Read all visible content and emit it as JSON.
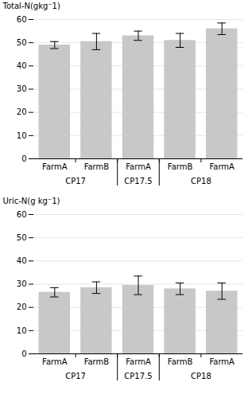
{
  "chart_data": [
    {
      "type": "bar",
      "ylabel": "Total-N(gkg⁻1)",
      "categories": [
        "FarmA",
        "FarmB",
        "FarmA",
        "FarmB",
        "FarmA"
      ],
      "groups": [
        "CP17",
        "CP17",
        "CP17.5",
        "CP18",
        "CP18"
      ],
      "values": [
        49.0,
        50.5,
        53.0,
        51.0,
        56.0
      ],
      "errors": [
        1.5,
        3.5,
        2.0,
        3.0,
        2.5
      ],
      "color": "#c8c8c8",
      "ylim": [
        0,
        60
      ],
      "yticks": [
        0,
        10,
        20,
        30,
        40,
        50,
        60
      ],
      "grid": true
    },
    {
      "type": "bar",
      "ylabel": "Uric-N(g kg⁻1)",
      "categories": [
        "FarmA",
        "FarmB",
        "FarmA",
        "FarmB",
        "FarmA"
      ],
      "groups": [
        "CP17",
        "CP17",
        "CP17.5",
        "CP18",
        "CP18"
      ],
      "values": [
        26.5,
        28.5,
        29.5,
        28.0,
        27.0
      ],
      "errors": [
        2.0,
        2.5,
        4.0,
        2.5,
        3.5
      ],
      "color": "#c8c8c8",
      "ylim": [
        0,
        60
      ],
      "yticks": [
        0,
        10,
        20,
        30,
        40,
        50,
        60
      ],
      "grid": true
    }
  ]
}
